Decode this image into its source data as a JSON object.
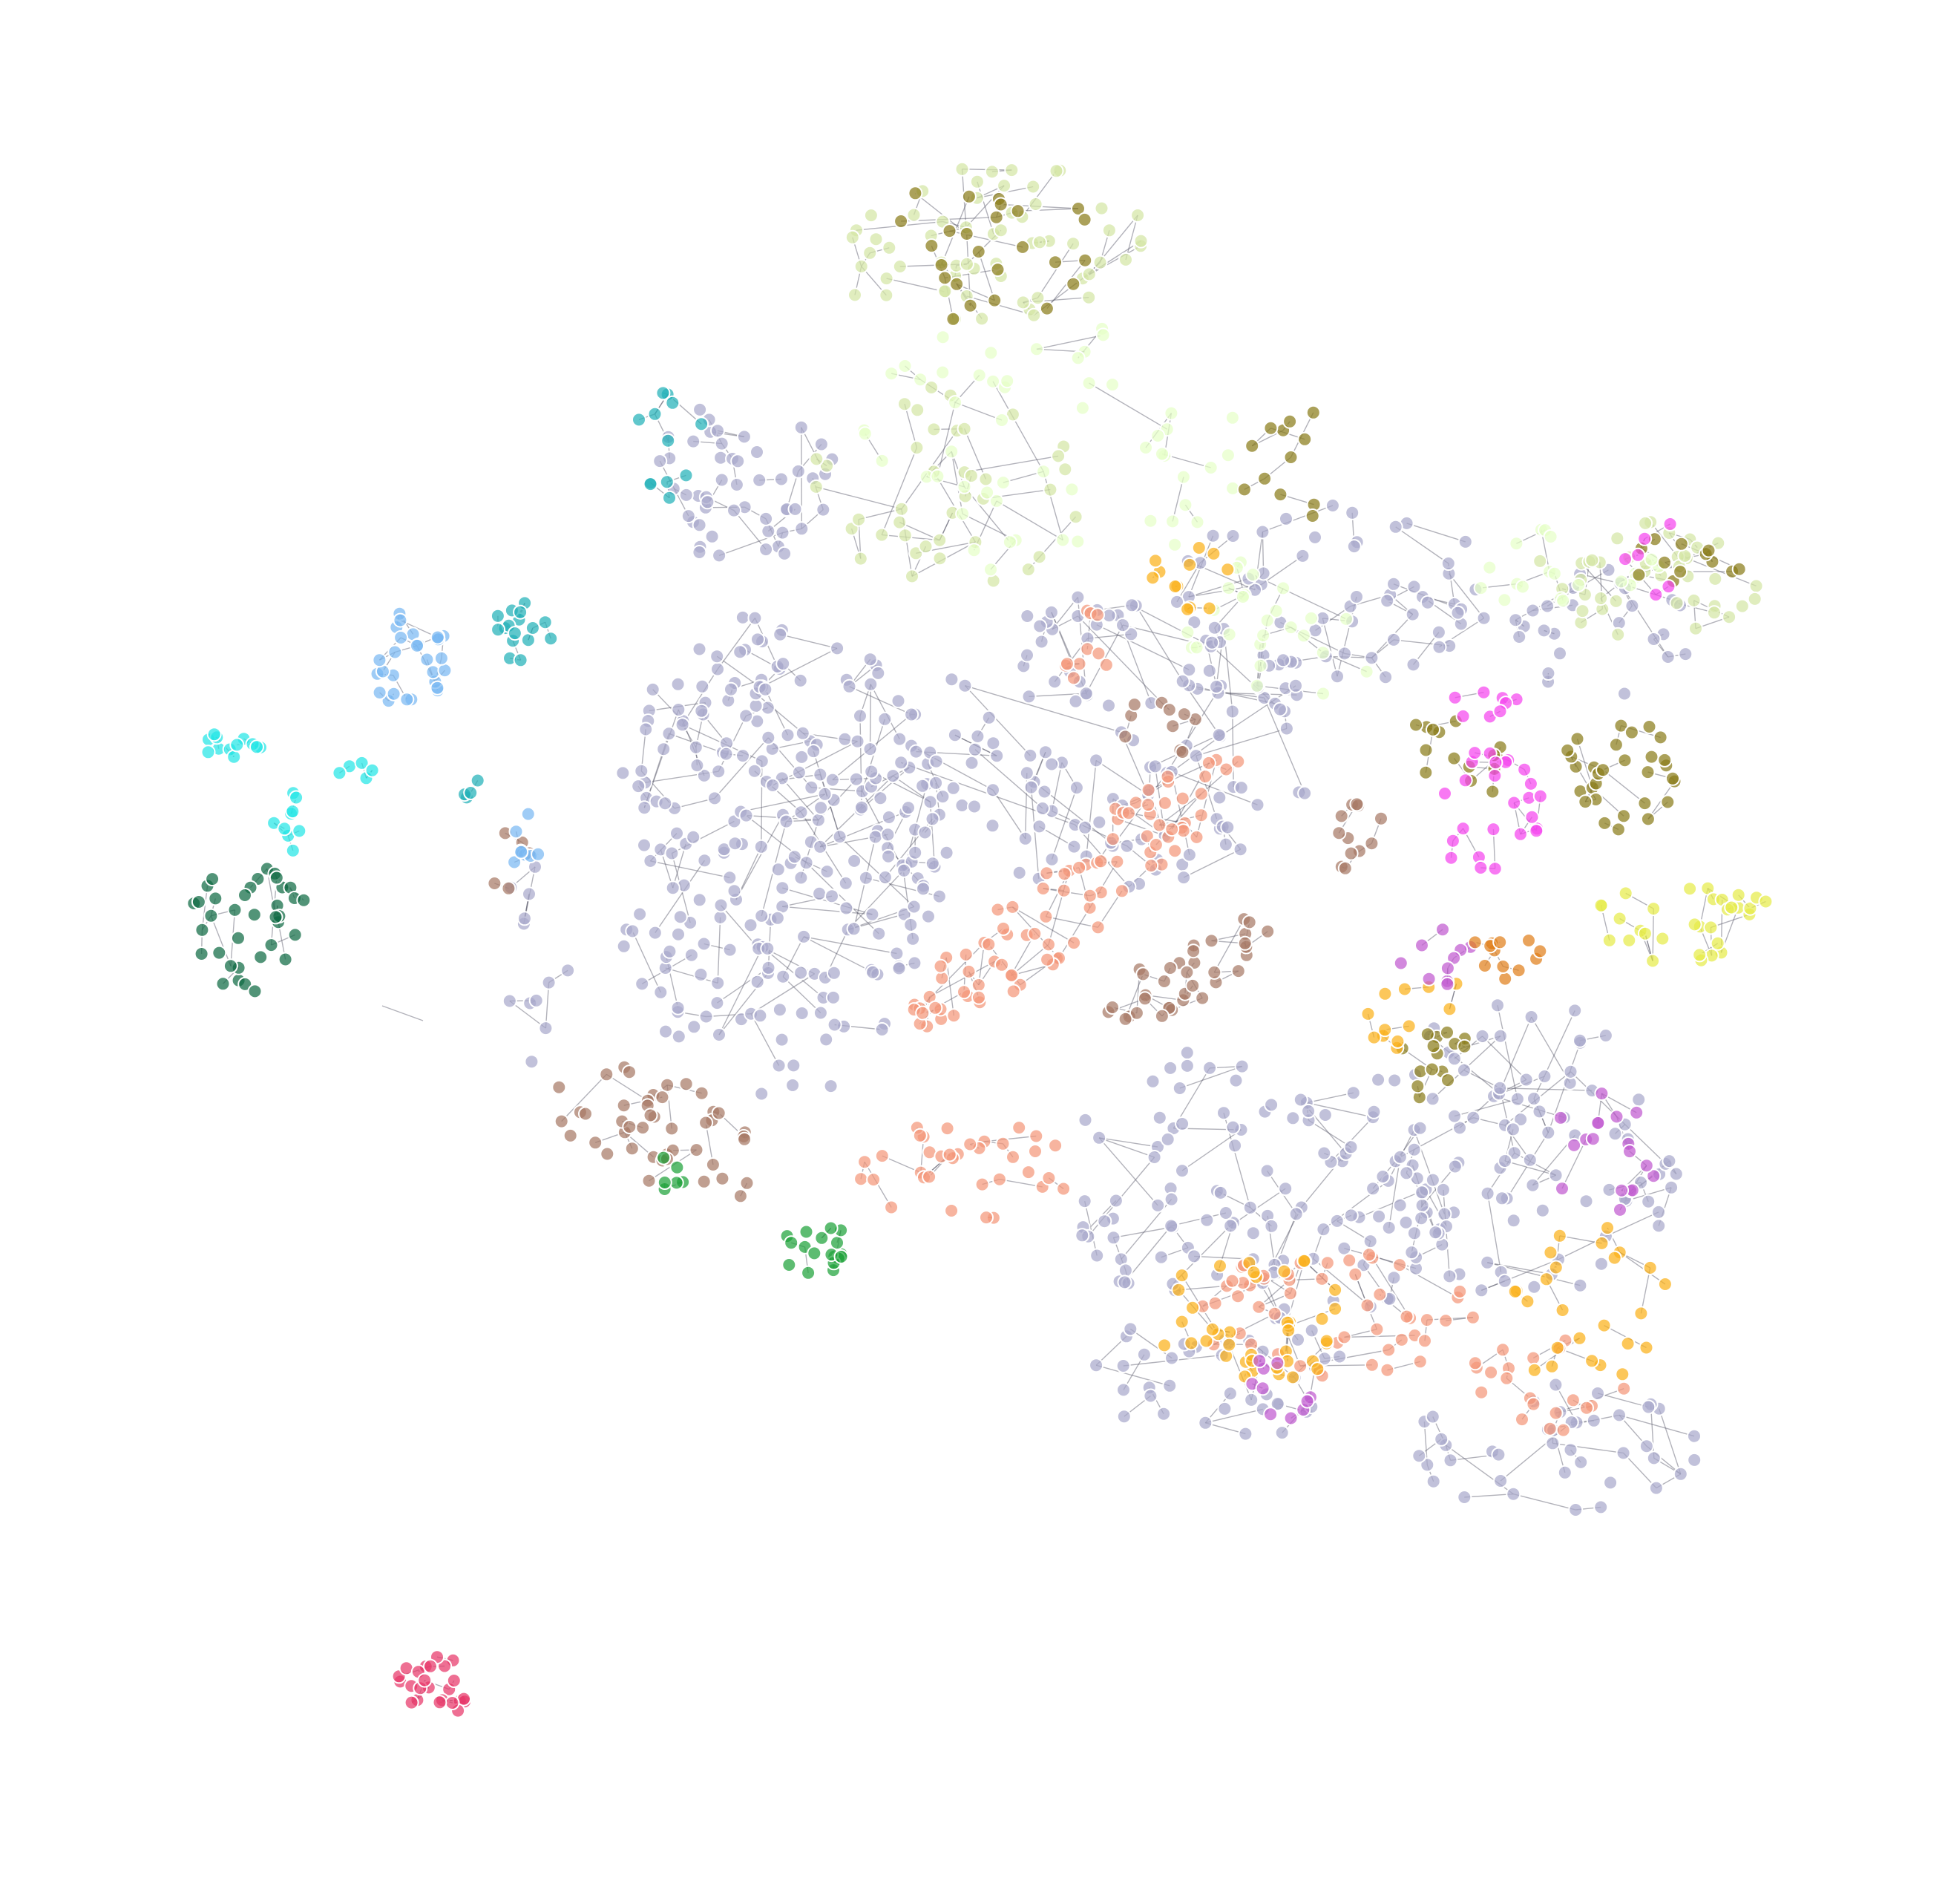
{
  "diagram": {
    "type": "network-graph",
    "background": "#ffffff",
    "node_opacity": 0.72,
    "has_labels": false,
    "has_legend": false,
    "clusters": [
      {
        "id": "lavender-core",
        "color": "#a9a9cc"
      },
      {
        "id": "pale-green",
        "color": "#d4e6a5"
      },
      {
        "id": "lime-pale",
        "color": "#e6ffc8"
      },
      {
        "id": "olive",
        "color": "#8b7d1a"
      },
      {
        "id": "salmon",
        "color": "#f4977a"
      },
      {
        "id": "brown",
        "color": "#a87a66"
      },
      {
        "id": "orange-gold",
        "color": "#fbb21a"
      },
      {
        "id": "magenta",
        "color": "#f545ef"
      },
      {
        "id": "purple",
        "color": "#c05ad0"
      },
      {
        "id": "yellow",
        "color": "#e6ec4a"
      },
      {
        "id": "light-blue",
        "color": "#7ab8f2"
      },
      {
        "id": "teal",
        "color": "#22b2b8"
      },
      {
        "id": "cyan",
        "color": "#24e6e6"
      },
      {
        "id": "dark-green",
        "color": "#0f6b44"
      },
      {
        "id": "green",
        "color": "#1fa23a"
      },
      {
        "id": "crimson",
        "color": "#e8386a"
      },
      {
        "id": "dark-orange",
        "color": "#e0801c"
      }
    ]
  }
}
